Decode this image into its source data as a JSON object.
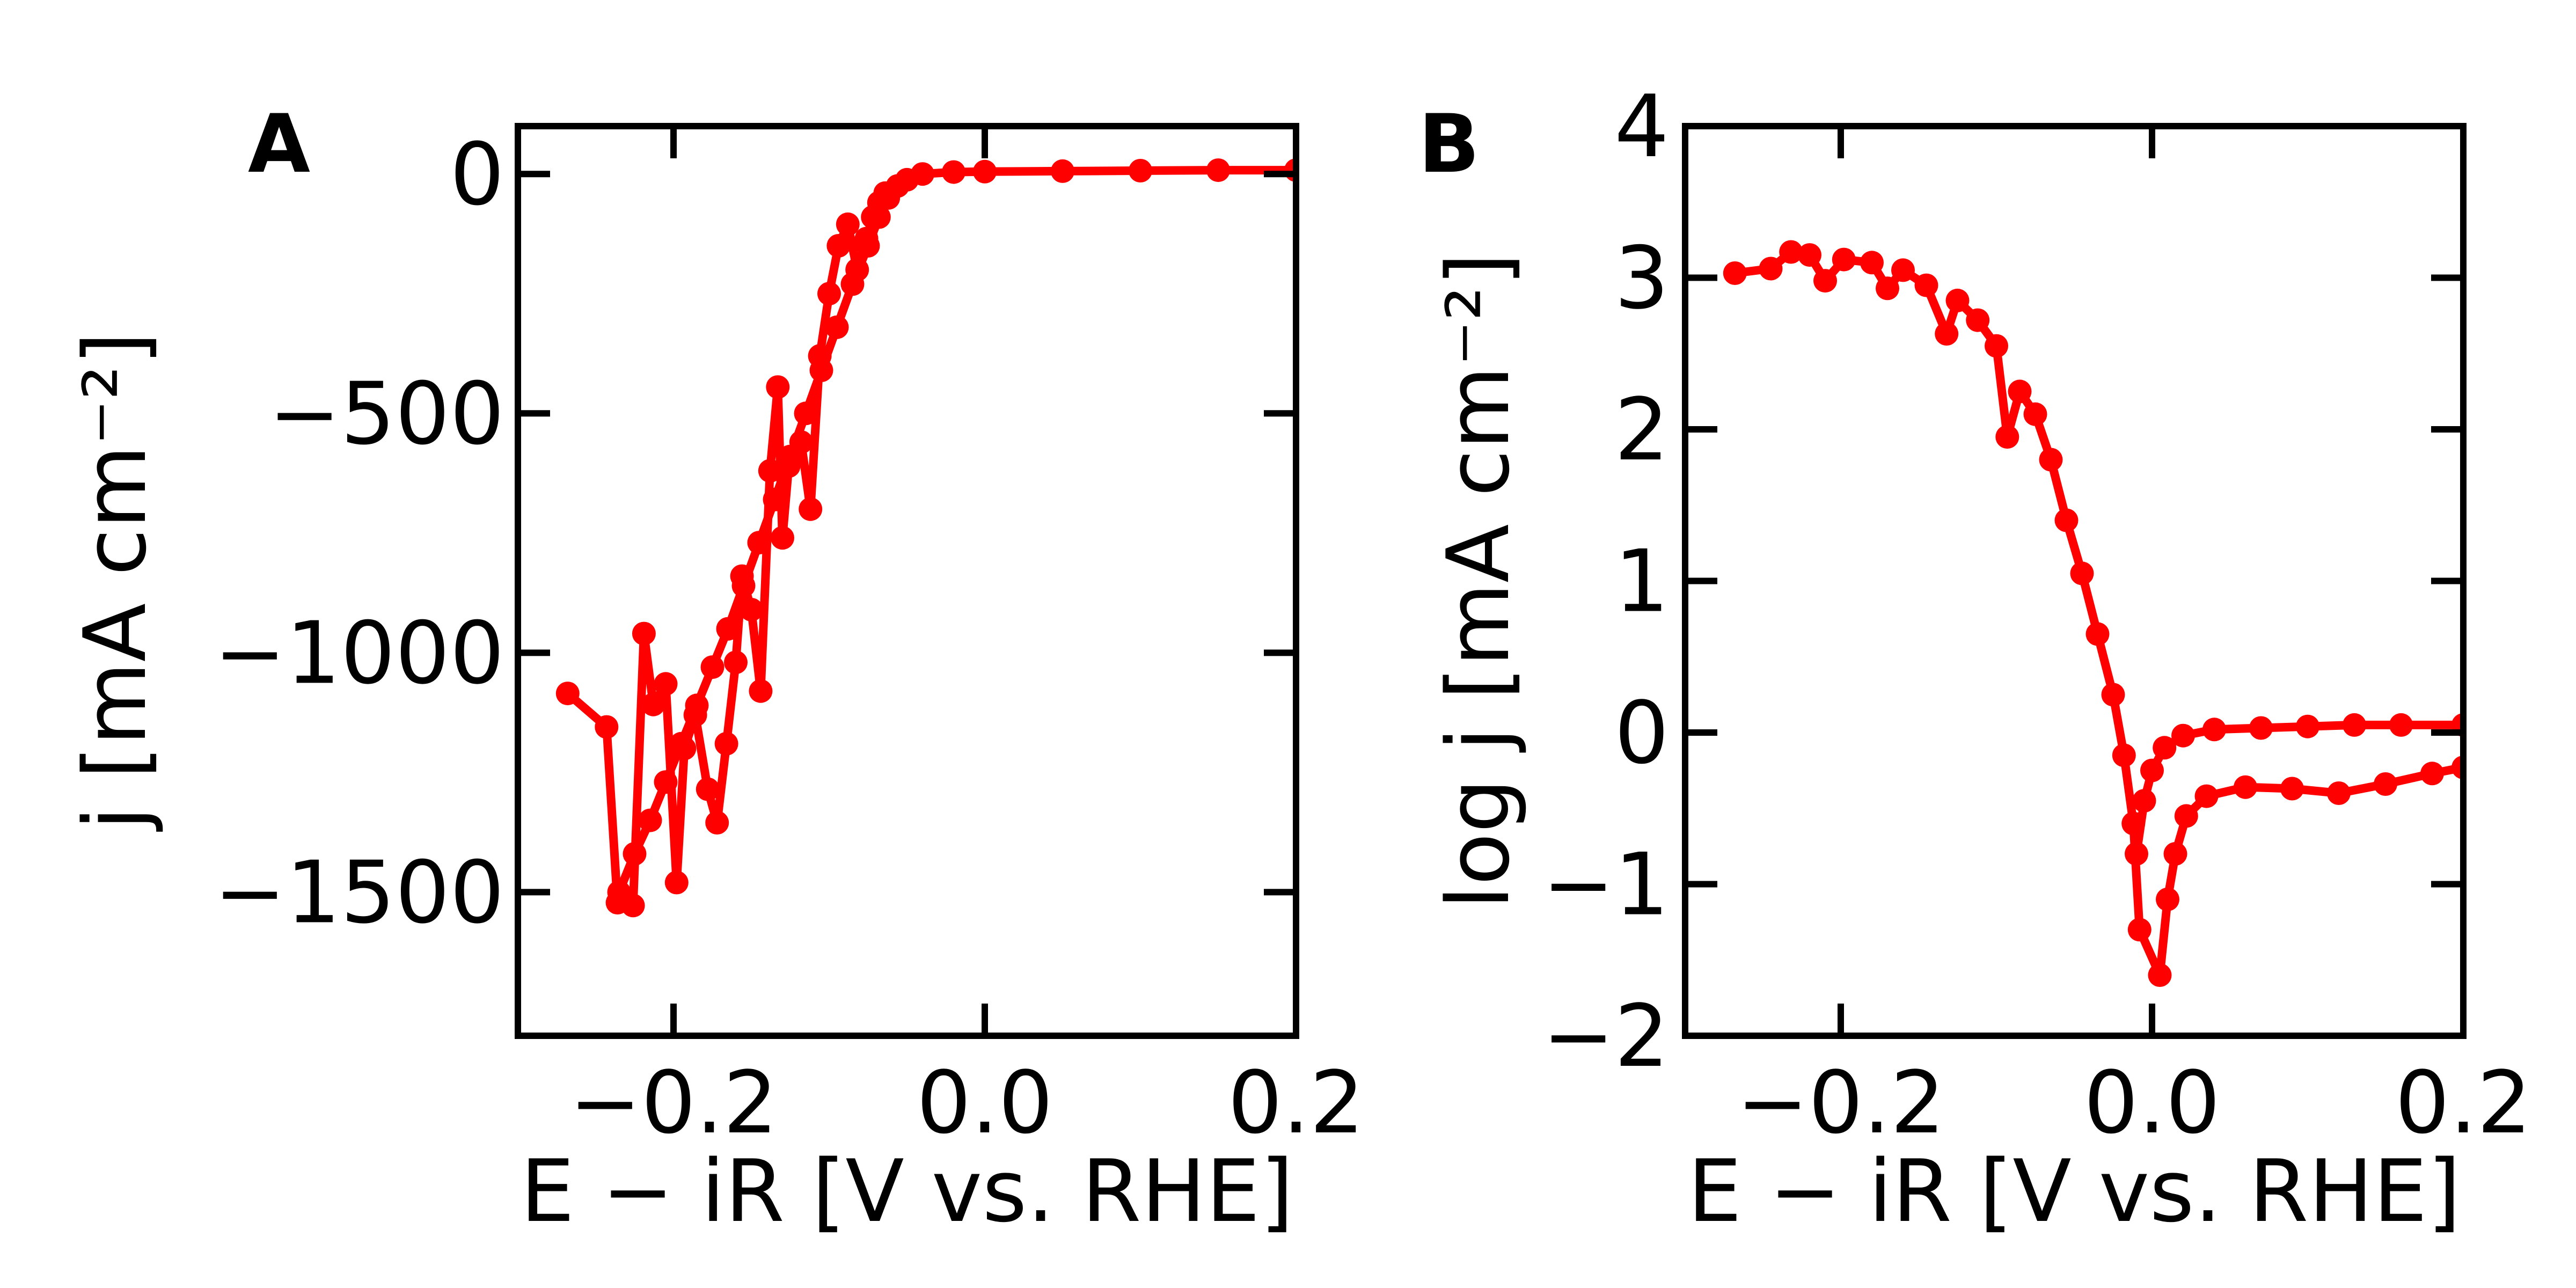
{
  "colors": {
    "series": "#ff0000",
    "axes": "#000000",
    "background": "#ffffff"
  },
  "chart_data": [
    {
      "panel_label": "A",
      "type": "scatter",
      "xlabel": "E − iR [V vs. RHE]",
      "ylabel": "j  [mA cm⁻²]",
      "xlim": [
        -0.3,
        0.2
      ],
      "ylim": [
        -1800,
        100
      ],
      "xticks": [
        -0.2,
        0.0,
        0.2
      ],
      "xtick_labels": [
        "−0.2",
        "0.0",
        "0.2"
      ],
      "yticks": [
        0,
        -500,
        -1000,
        -1500
      ],
      "ytick_labels": [
        "0",
        "−500",
        "−1000",
        "−1500"
      ],
      "grid": false,
      "series": [
        {
          "values": [
            [
              -0.268,
              -1085
            ],
            [
              -0.243,
              -1155
            ],
            [
              -0.236,
              -1522
            ],
            [
              -0.226,
              -1528
            ],
            [
              -0.219,
              -960
            ],
            [
              -0.213,
              -1108
            ],
            [
              -0.205,
              -1065
            ],
            [
              -0.198,
              -1480
            ],
            [
              -0.193,
              -1200
            ],
            [
              -0.186,
              -1130
            ],
            [
              -0.178,
              -1285
            ],
            [
              -0.172,
              -1355
            ],
            [
              -0.166,
              -1190
            ],
            [
              -0.16,
              -1020
            ],
            [
              -0.156,
              -840
            ],
            [
              -0.15,
              -910
            ],
            [
              -0.144,
              -1080
            ],
            [
              -0.138,
              -620
            ],
            [
              -0.133,
              -445
            ],
            [
              -0.13,
              -760
            ],
            [
              -0.126,
              -610
            ],
            [
              -0.118,
              -560
            ],
            [
              -0.112,
              -700
            ],
            [
              -0.106,
              -380
            ],
            [
              -0.1,
              -250
            ],
            [
              -0.094,
              -150
            ],
            [
              -0.088,
              -105
            ],
            [
              -0.082,
              -200
            ],
            [
              -0.076,
              -135
            ],
            [
              -0.072,
              -90
            ],
            [
              -0.068,
              -60
            ],
            [
              -0.064,
              -40
            ]
          ]
        },
        {
          "values": [
            [
              -0.235,
              -1500
            ],
            [
              -0.225,
              -1420
            ],
            [
              -0.215,
              -1350
            ],
            [
              -0.205,
              -1270
            ],
            [
              -0.195,
              -1190
            ],
            [
              -0.185,
              -1110
            ],
            [
              -0.175,
              -1030
            ],
            [
              -0.165,
              -950
            ],
            [
              -0.155,
              -860
            ],
            [
              -0.145,
              -770
            ],
            [
              -0.135,
              -680
            ],
            [
              -0.125,
              -590
            ],
            [
              -0.115,
              -500
            ],
            [
              -0.105,
              -410
            ],
            [
              -0.095,
              -320
            ],
            [
              -0.085,
              -230
            ],
            [
              -0.075,
              -150
            ],
            [
              -0.068,
              -90
            ],
            [
              -0.062,
              -50
            ],
            [
              -0.056,
              -25
            ],
            [
              -0.05,
              -12
            ],
            [
              -0.04,
              0
            ],
            [
              -0.02,
              4
            ],
            [
              0.0,
              5
            ],
            [
              0.05,
              6
            ],
            [
              0.1,
              7
            ],
            [
              0.15,
              8
            ],
            [
              0.2,
              8
            ]
          ]
        }
      ]
    },
    {
      "panel_label": "B",
      "type": "scatter",
      "xlabel": "E − iR [V vs. RHE]",
      "ylabel": "log j  [mA cm⁻²]",
      "xlim": [
        -0.3,
        0.2
      ],
      "ylim": [
        -2,
        4
      ],
      "xticks": [
        -0.2,
        0.0,
        0.2
      ],
      "xtick_labels": [
        "−0.2",
        "0.0",
        "0.2"
      ],
      "yticks": [
        4,
        3,
        2,
        1,
        0,
        -1,
        -2
      ],
      "ytick_labels": [
        "4",
        "3",
        "2",
        "1",
        "0",
        "−1",
        "−2"
      ],
      "grid": false,
      "series": [
        {
          "values": [
            [
              -0.268,
              3.03
            ],
            [
              -0.245,
              3.06
            ],
            [
              -0.232,
              3.17
            ],
            [
              -0.22,
              3.15
            ],
            [
              -0.21,
              2.98
            ],
            [
              -0.198,
              3.12
            ],
            [
              -0.18,
              3.1
            ],
            [
              -0.17,
              2.93
            ],
            [
              -0.16,
              3.05
            ],
            [
              -0.145,
              2.95
            ],
            [
              -0.132,
              2.63
            ],
            [
              -0.125,
              2.85
            ],
            [
              -0.112,
              2.72
            ],
            [
              -0.1,
              2.55
            ],
            [
              -0.093,
              1.95
            ],
            [
              -0.085,
              2.25
            ],
            [
              -0.075,
              2.1
            ],
            [
              -0.065,
              1.8
            ],
            [
              -0.055,
              1.4
            ],
            [
              -0.045,
              1.05
            ],
            [
              -0.035,
              0.65
            ],
            [
              -0.025,
              0.25
            ],
            [
              -0.018,
              -0.15
            ],
            [
              -0.012,
              -0.6
            ],
            [
              -0.008,
              -1.3
            ],
            [
              0.005,
              -1.6
            ],
            [
              0.01,
              -1.1
            ],
            [
              0.015,
              -0.8
            ],
            [
              0.022,
              -0.55
            ],
            [
              0.035,
              -0.42
            ],
            [
              0.06,
              -0.36
            ],
            [
              0.09,
              -0.37
            ],
            [
              0.12,
              -0.4
            ],
            [
              0.15,
              -0.34
            ],
            [
              0.18,
              -0.27
            ],
            [
              0.2,
              -0.23
            ]
          ]
        },
        {
          "values": [
            [
              -0.01,
              -0.8
            ],
            [
              -0.005,
              -0.45
            ],
            [
              0.0,
              -0.25
            ],
            [
              0.008,
              -0.1
            ],
            [
              0.02,
              -0.02
            ],
            [
              0.04,
              0.02
            ],
            [
              0.07,
              0.03
            ],
            [
              0.1,
              0.04
            ],
            [
              0.13,
              0.05
            ],
            [
              0.16,
              0.05
            ],
            [
              0.2,
              0.05
            ]
          ]
        }
      ]
    }
  ]
}
